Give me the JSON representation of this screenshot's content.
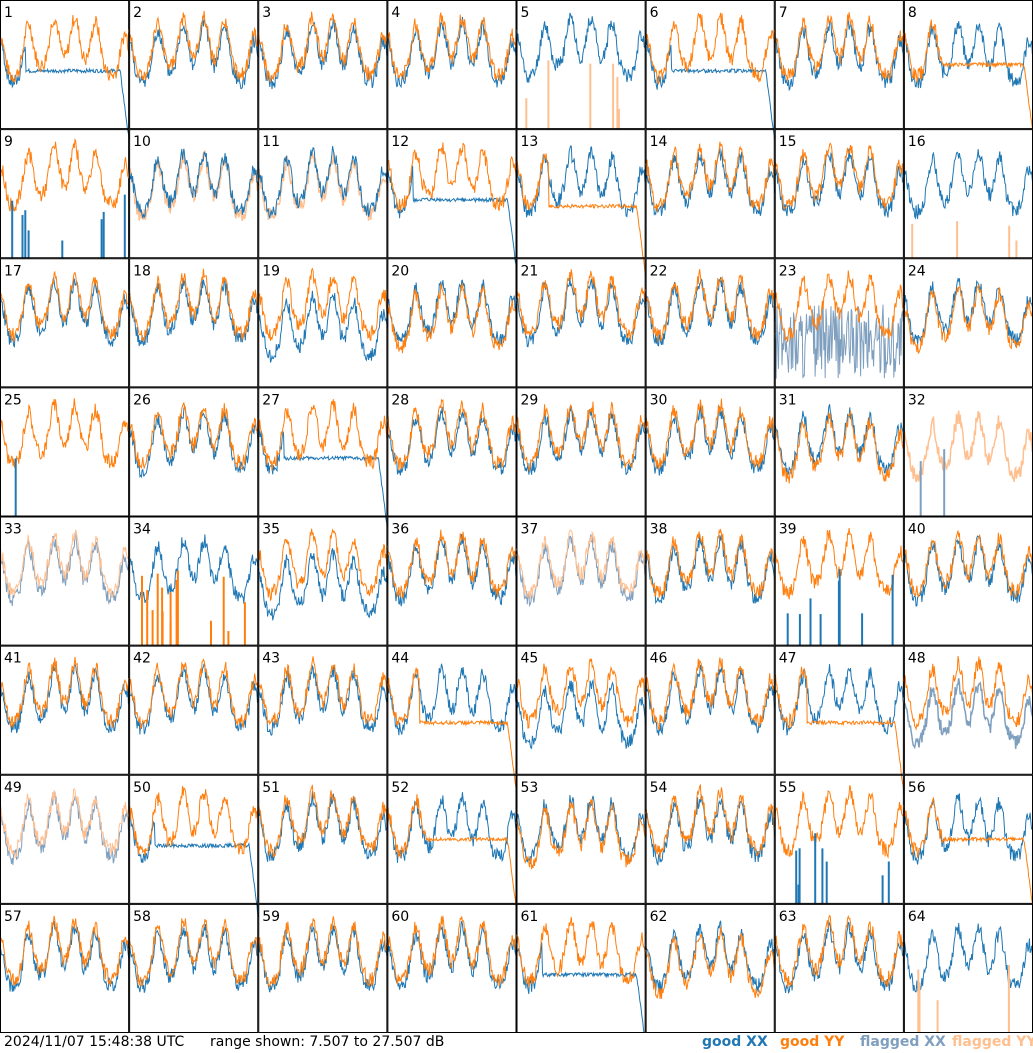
{
  "chart_data": {
    "type": "line",
    "panel_labels": [
      "1",
      "2",
      "3",
      "4",
      "5",
      "6",
      "7",
      "8",
      "9",
      "10",
      "11",
      "12",
      "13",
      "14",
      "15",
      "16",
      "17",
      "18",
      "19",
      "20",
      "21",
      "22",
      "23",
      "24",
      "25",
      "26",
      "27",
      "28",
      "29",
      "30",
      "31",
      "32",
      "33",
      "34",
      "35",
      "36",
      "37",
      "38",
      "39",
      "40",
      "41",
      "42",
      "43",
      "44",
      "45",
      "46",
      "47",
      "48",
      "49",
      "50",
      "51",
      "52",
      "53",
      "54",
      "55",
      "56",
      "57",
      "58",
      "59",
      "60",
      "61",
      "62",
      "63",
      "64"
    ],
    "ylim": [
      7.507,
      27.507
    ],
    "legend_position": "bottom-right",
    "series": [
      {
        "name": "good XX",
        "color": "#1f77b4"
      },
      {
        "name": "good YY",
        "color": "#ff7f0e"
      },
      {
        "name": "flagged XX",
        "color": "#7f9fbf"
      },
      {
        "name": "flagged YY",
        "color": "#ffbf8f"
      }
    ],
    "panel_styles": {
      "1": "xxdrop",
      "5": "spikesY",
      "6": "xxdrop",
      "8": "yydiv",
      "9": "spikesX",
      "10": "flagY",
      "11": "flagY",
      "12": "xxdrop",
      "13": "yydrop",
      "16": "spikesYflagX",
      "19": "xxlow",
      "20": "yylow",
      "23": "noiseX",
      "24": "yylow",
      "25": "yyonly",
      "27": "xxdrop",
      "31": "yylow",
      "32": "flagYnoX",
      "33": "flagYthin",
      "34": "spikesYonX",
      "35": "xxlow",
      "37": "flagYthin",
      "39": "spikesX",
      "44": "yydrop",
      "45": "xxlow",
      "47": "yydrop",
      "48": "flagXlow",
      "49": "flagYthin",
      "50": "xxdrop",
      "52": "yydiv",
      "53": "yylow",
      "55": "spikesX",
      "56": "yydiv",
      "61": "xxdrop",
      "62": "yylow",
      "64": "spikesYflagX"
    }
  },
  "footer": {
    "timestamp": "2024/11/07 15:48:38 UTC",
    "range": "range shown: 7.507 to 27.507 dB"
  },
  "legend": {
    "good_xx": "good XX",
    "good_yy": "good YY",
    "flagged_xx": "flagged XX",
    "flagged_yy": "flagged YY"
  },
  "colors": {
    "good_xx": "#1f77b4",
    "good_yy": "#ff7f0e",
    "flagged_xx": "#7f9fbf",
    "flagged_yy": "#ffbf8f"
  }
}
